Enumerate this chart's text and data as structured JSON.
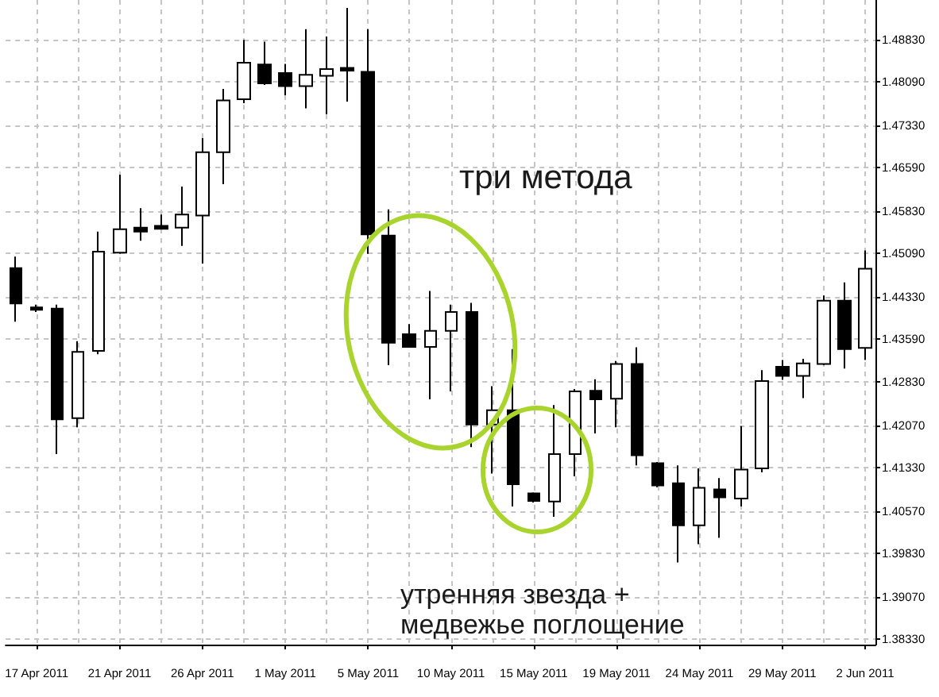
{
  "chart_data": {
    "type": "candlestick",
    "categories": [
      null,
      "17 Apr 2011",
      null,
      null,
      null,
      "21 Apr 2011",
      null,
      null,
      null,
      "26 Apr 2011",
      null,
      null,
      null,
      "1 May 2011",
      null,
      null,
      null,
      "5 May 2011",
      null,
      null,
      null,
      "10 May 2011",
      null,
      null,
      null,
      "15 May 2011",
      null,
      null,
      null,
      "19 May 2011",
      null,
      null,
      null,
      "24 May 2011",
      null,
      null,
      null,
      "29 May 2011",
      null,
      null,
      null,
      "2 Jun 2011"
    ],
    "ohlc": [
      [
        1.4483,
        1.4503,
        1.4389,
        1.4421
      ],
      [
        1.4414,
        1.4419,
        1.4406,
        1.441
      ],
      [
        1.4412,
        1.4419,
        1.4157,
        1.4218
      ],
      [
        1.422,
        1.4355,
        1.4204,
        1.4336
      ],
      [
        1.4338,
        1.4547,
        1.4332,
        1.4512
      ],
      [
        1.451,
        1.4647,
        1.4508,
        1.4551
      ],
      [
        1.4554,
        1.4588,
        1.4531,
        1.4547
      ],
      [
        1.4557,
        1.4577,
        1.4551,
        1.4552
      ],
      [
        1.4554,
        1.4626,
        1.4522,
        1.4577
      ],
      [
        1.4575,
        1.4711,
        1.4491,
        1.4686
      ],
      [
        1.4686,
        1.4797,
        1.463,
        1.4777
      ],
      [
        1.4779,
        1.4883,
        1.4772,
        1.4843
      ],
      [
        1.484,
        1.488,
        1.4804,
        1.4807
      ],
      [
        1.4825,
        1.4841,
        1.4786,
        1.4802
      ],
      [
        1.4802,
        1.4902,
        1.4763,
        1.4822
      ],
      [
        1.482,
        1.4889,
        1.4753,
        1.4832
      ],
      [
        1.4834,
        1.4939,
        1.4775,
        1.4829
      ],
      [
        1.4827,
        1.4902,
        1.4508,
        1.4542
      ],
      [
        1.454,
        1.4586,
        1.4313,
        1.4352
      ],
      [
        1.4367,
        1.4385,
        1.4345,
        1.4345
      ],
      [
        1.4345,
        1.4443,
        1.4253,
        1.4373
      ],
      [
        1.4373,
        1.4419,
        1.4267,
        1.4406
      ],
      [
        1.4406,
        1.4422,
        1.4169,
        1.4209
      ],
      [
        1.4209,
        1.4276,
        1.4123,
        1.4234
      ],
      [
        1.4234,
        1.4341,
        1.4065,
        1.4104
      ],
      [
        1.4088,
        1.409,
        1.4072,
        1.4075
      ],
      [
        1.4074,
        1.4243,
        1.4047,
        1.4157
      ],
      [
        1.4157,
        1.4271,
        1.4118,
        1.4267
      ],
      [
        1.4268,
        1.4288,
        1.4193,
        1.4253
      ],
      [
        1.4254,
        1.432,
        1.4204,
        1.4315
      ],
      [
        1.4315,
        1.4344,
        1.4137,
        1.4155
      ],
      [
        1.4141,
        1.4143,
        1.4099,
        1.4102
      ],
      [
        1.4106,
        1.4137,
        1.3967,
        1.4032
      ],
      [
        1.4032,
        1.4132,
        1.3999,
        1.4098
      ],
      [
        1.4095,
        1.4115,
        1.401,
        1.4081
      ],
      [
        1.4079,
        1.4206,
        1.4065,
        1.413
      ],
      [
        1.4132,
        1.4304,
        1.4125,
        1.4285
      ],
      [
        1.431,
        1.4322,
        1.4287,
        1.4294
      ],
      [
        1.4294,
        1.4324,
        1.4255,
        1.4316
      ],
      [
        1.4315,
        1.4435,
        1.4313,
        1.4426
      ],
      [
        1.4426,
        1.4458,
        1.4307,
        1.4341
      ],
      [
        1.4343,
        1.4514,
        1.4322,
        1.4482
      ]
    ],
    "color": "#000000",
    "colors": [
      "#000000",
      "#000000",
      "#000000",
      "#ffffff",
      "#ffffff",
      "#ffffff",
      "#000000",
      "#000000",
      "#ffffff",
      "#ffffff",
      "#ffffff",
      "#ffffff",
      "#000000",
      "#000000",
      "#ffffff",
      "#ffffff",
      "#000000",
      "#000000",
      "#000000",
      "#000000",
      "#ffffff",
      "#ffffff",
      "#000000",
      "#ffffff",
      "#000000",
      "#000000",
      "#ffffff",
      "#ffffff",
      "#000000",
      "#ffffff",
      "#000000",
      "#000000",
      "#000000",
      "#ffffff",
      "#000000",
      "#ffffff",
      "#ffffff",
      "#000000",
      "#ffffff",
      "#ffffff",
      "#000000",
      "#ffffff"
    ],
    "ylim": [
      1.3823,
      1.4953
    ],
    "yticks": [
      {
        "value": 1.3833,
        "label": "1.38330"
      },
      {
        "value": 1.3907,
        "label": "1.39070"
      },
      {
        "value": 1.3983,
        "label": "1.39830"
      },
      {
        "value": 1.4057,
        "label": "1.40570"
      },
      {
        "value": 1.4133,
        "label": "1.41330"
      },
      {
        "value": 1.4207,
        "label": "1.42070"
      },
      {
        "value": 1.4283,
        "label": "1.42830"
      },
      {
        "value": 1.4359,
        "label": "1.43590"
      },
      {
        "value": 1.4433,
        "label": "1.44330"
      },
      {
        "value": 1.4509,
        "label": "1.45090"
      },
      {
        "value": 1.4583,
        "label": "1.45830"
      },
      {
        "value": 1.4659,
        "label": "1.46590"
      },
      {
        "value": 1.4733,
        "label": "1.47330"
      },
      {
        "value": 1.4809,
        "label": "1.48090"
      },
      {
        "value": 1.4883,
        "label": "1.48830"
      }
    ],
    "grid": true,
    "annotations": [
      "три метода",
      "утренняя звезда +\nмедвежье поглощение"
    ]
  }
}
